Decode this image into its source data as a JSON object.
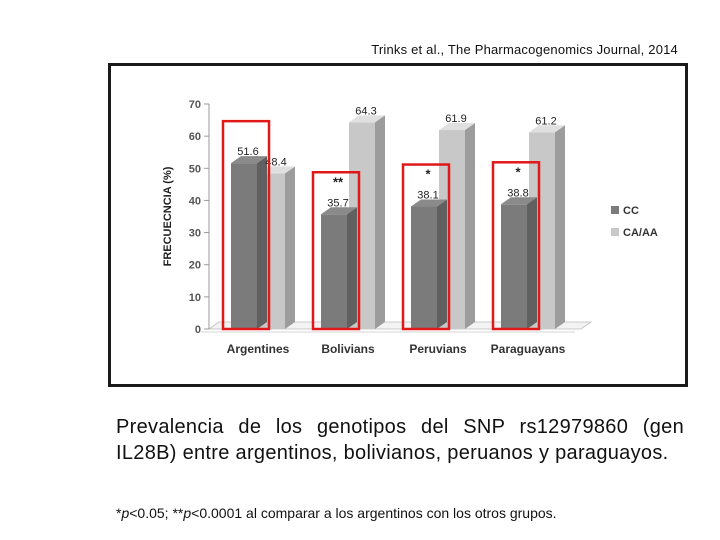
{
  "citation": "Trinks et al.,  The Pharmacogenomics Journal, 2014",
  "caption": "Prevalencia de los genotipos del SNP rs12979860 (gen IL28B) entre argentinos, bolivianos, peruanos y paraguayos.",
  "footnote": {
    "star1": "*",
    "p1": "p",
    "text1": "<0.05; **",
    "p2": "p",
    "text2": "<0.0001 al comparar a los argentinos con los otros grupos."
  },
  "colors": {
    "cc": "#7b7b7b",
    "caaa": "#c8c8c8",
    "highlight": "#e01818"
  },
  "chart_data": {
    "type": "bar",
    "title": "",
    "xlabel": "",
    "ylabel": "FRECUECNCIA (%)",
    "ylim": [
      0,
      70
    ],
    "yticks": [
      0,
      10,
      20,
      30,
      40,
      50,
      60,
      70
    ],
    "categories": [
      "Argentines",
      "Bolivians",
      "Peruvians",
      "Paraguayans"
    ],
    "series": [
      {
        "name": "CC",
        "values": [
          51.6,
          35.7,
          38.1,
          38.8
        ]
      },
      {
        "name": "CA/AA",
        "values": [
          48.4,
          64.3,
          61.9,
          61.2
        ]
      }
    ],
    "value_labels": [
      [
        "51.6",
        "35.7",
        "38.1",
        "38.8"
      ],
      [
        "48.4",
        "64.3",
        "61.9",
        "61.2"
      ]
    ],
    "annotations": [
      "",
      "**",
      "*",
      "*"
    ],
    "legend": {
      "position": "right",
      "entries": [
        "CC",
        "CA/AA"
      ]
    },
    "highlighted_series": "CC",
    "grid": false
  }
}
